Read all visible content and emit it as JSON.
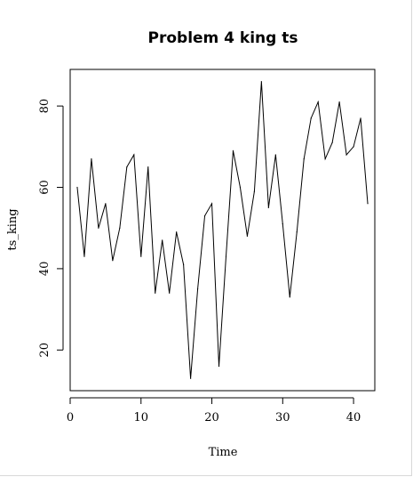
{
  "chart_data": {
    "type": "line",
    "title": "Problem 4 king ts",
    "xlabel": "Time",
    "ylabel": "ts_king",
    "xlim": [
      0,
      43
    ],
    "ylim": [
      10,
      89
    ],
    "x_ticks": [
      0,
      10,
      20,
      30,
      40
    ],
    "y_ticks": [
      20,
      40,
      60,
      80
    ],
    "grid": false,
    "series": [
      {
        "x": [
          1,
          2,
          3,
          4,
          5,
          6,
          7,
          8,
          9,
          10,
          11,
          12,
          13,
          14,
          15,
          16,
          17,
          18,
          19,
          20,
          21,
          22,
          23,
          24,
          25,
          26,
          27,
          28,
          29,
          30,
          31,
          32,
          33,
          34,
          35,
          36,
          37,
          38,
          39,
          40,
          41,
          42
        ],
        "values": [
          60,
          43,
          67,
          50,
          56,
          42,
          50,
          65,
          68,
          43,
          65,
          34,
          47,
          34,
          49,
          41,
          13,
          35,
          53,
          56,
          16,
          43,
          69,
          60,
          48,
          59,
          86,
          55,
          68,
          51,
          33,
          49,
          67,
          77,
          81,
          67,
          71,
          81,
          68,
          70,
          77,
          56
        ]
      }
    ]
  }
}
